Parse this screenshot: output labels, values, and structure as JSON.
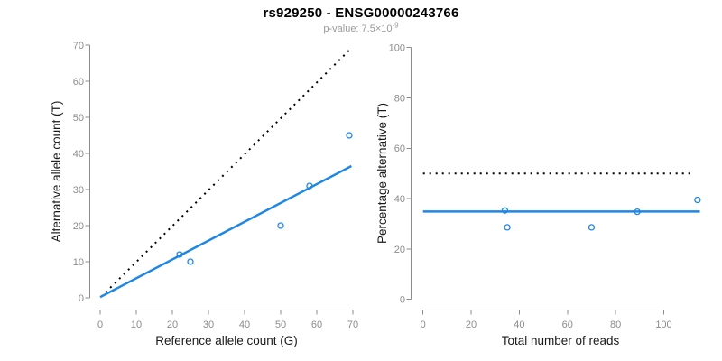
{
  "header": {
    "title": "rs929250 - ENSG00000243766",
    "subtitle_prefix": "p-value: 7.5×10",
    "subtitle_exponent": "-9"
  },
  "colors": {
    "accent_blue": "#1E87E5",
    "reference_black": "#000000",
    "axis_gray": "#8C8C8C",
    "tick_label_gray": "#8C8C8C",
    "axis_title_black": "#1a1a1a",
    "subtitle_gray": "#9A9A9A",
    "background": "#FFFFFF"
  },
  "chart_data": [
    {
      "type": "scatter",
      "name": "allele-count-scatter",
      "title": "",
      "xlabel": "Reference allele count (G)",
      "ylabel": "Alternative allele count (T)",
      "xlim": [
        0,
        70
      ],
      "ylim": [
        0,
        70
      ],
      "xticks": [
        0,
        10,
        20,
        30,
        40,
        50,
        60,
        70
      ],
      "yticks": [
        0,
        10,
        20,
        30,
        40,
        50,
        60,
        70
      ],
      "grid": false,
      "legend": false,
      "points": [
        [
          22,
          12
        ],
        [
          25,
          10
        ],
        [
          50,
          20
        ],
        [
          58,
          31
        ],
        [
          69,
          45
        ]
      ],
      "point_style": {
        "marker": "open-circle",
        "radius": 3,
        "color": "#1E87E5"
      },
      "lines": [
        {
          "name": "identity-line",
          "from": [
            0.3,
            0.3
          ],
          "to": [
            69,
            68.6
          ],
          "color": "#000000",
          "width": 2,
          "dash": "2 5"
        },
        {
          "name": "fit-line",
          "from": [
            0,
            0.2
          ],
          "to": [
            69.6,
            36.5
          ],
          "color": "#1E87E5",
          "width": 2.5,
          "dash": ""
        }
      ]
    },
    {
      "type": "scatter",
      "name": "percentage-alternative-scatter",
      "title": "",
      "xlabel": "Total number of reads",
      "ylabel": "Percentage alternative (T)",
      "xlim": [
        0,
        115
      ],
      "ylim": [
        0,
        100
      ],
      "xticks": [
        0,
        20,
        40,
        60,
        80,
        100
      ],
      "yticks": [
        0,
        20,
        40,
        60,
        80,
        100
      ],
      "grid": false,
      "legend": false,
      "points": [
        [
          34,
          35.3
        ],
        [
          35,
          28.6
        ],
        [
          70,
          28.6
        ],
        [
          89,
          34.8
        ],
        [
          114,
          39.5
        ]
      ],
      "point_style": {
        "marker": "open-circle",
        "radius": 3,
        "color": "#1E87E5"
      },
      "lines": [
        {
          "name": "fifty-percent-line",
          "from": [
            0,
            50
          ],
          "to": [
            112,
            50
          ],
          "color": "#000000",
          "width": 2,
          "dash": "2 5"
        },
        {
          "name": "fit-line",
          "from": [
            0,
            34.9
          ],
          "to": [
            115,
            34.9
          ],
          "color": "#1E87E5",
          "width": 2.5,
          "dash": ""
        }
      ]
    }
  ]
}
